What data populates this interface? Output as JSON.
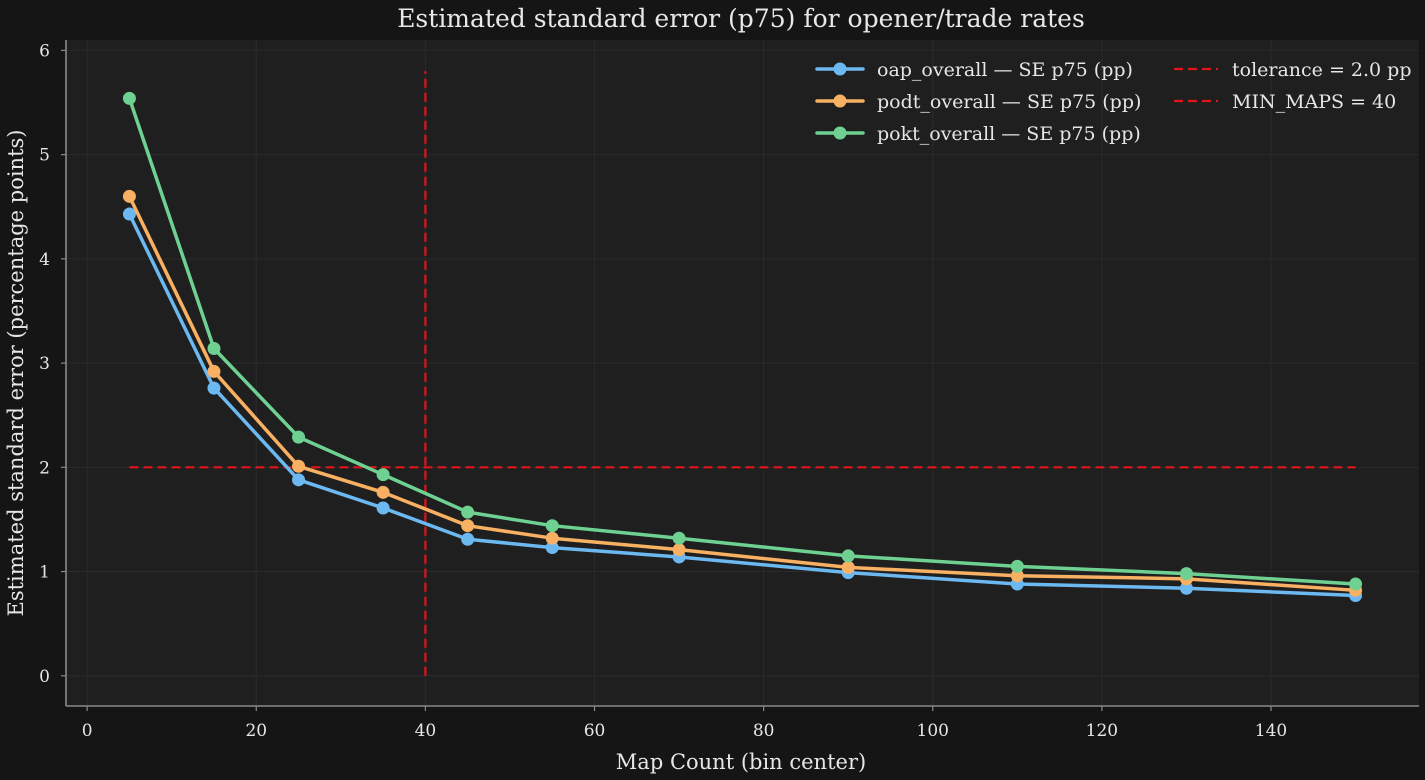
{
  "chart_data": {
    "type": "line",
    "title": "Estimated standard error (p75) for opener/trade rates",
    "xlabel": "Map Count (bin center)",
    "ylabel": "Estimated standard error (percentage points)",
    "xlim": [
      -2.5,
      157.5
    ],
    "ylim": [
      -0.29,
      6.1
    ],
    "x_ticks": [
      "0",
      "20",
      "40",
      "60",
      "80",
      "100",
      "120",
      "140"
    ],
    "y_ticks": [
      "0",
      "1",
      "2",
      "3",
      "4",
      "5",
      "6"
    ],
    "grid": true,
    "legend_position": "top-right",
    "x": [
      5,
      15,
      25,
      35,
      45,
      55,
      70,
      90,
      110,
      130,
      150
    ],
    "series": [
      {
        "name": "oap_overall — SE p75 (pp)",
        "color": "#6cb8f0",
        "values": [
          4.43,
          2.76,
          1.88,
          1.61,
          1.31,
          1.23,
          1.14,
          0.99,
          0.88,
          0.84,
          0.77
        ]
      },
      {
        "name": "podt_overall — SE p75 (pp)",
        "color": "#f8b062",
        "values": [
          4.6,
          2.92,
          2.01,
          1.76,
          1.44,
          1.32,
          1.21,
          1.04,
          0.96,
          0.93,
          0.82
        ]
      },
      {
        "name": "pokt_overall — SE p75 (pp)",
        "color": "#6fd191",
        "values": [
          5.54,
          3.14,
          2.29,
          1.93,
          1.57,
          1.44,
          1.32,
          1.15,
          1.05,
          0.98,
          0.88
        ]
      }
    ],
    "reference_lines": [
      {
        "name": "tolerance = 2.0 pp",
        "orientation": "horizontal",
        "value": 2.0,
        "from": 5,
        "to": 150,
        "color": "#e0141a",
        "style": "dashed"
      },
      {
        "name": "MIN_MAPS = 40",
        "orientation": "vertical",
        "value": 40,
        "from": 0,
        "to": 5.8,
        "color": "#e0141a",
        "style": "dashed"
      }
    ]
  }
}
